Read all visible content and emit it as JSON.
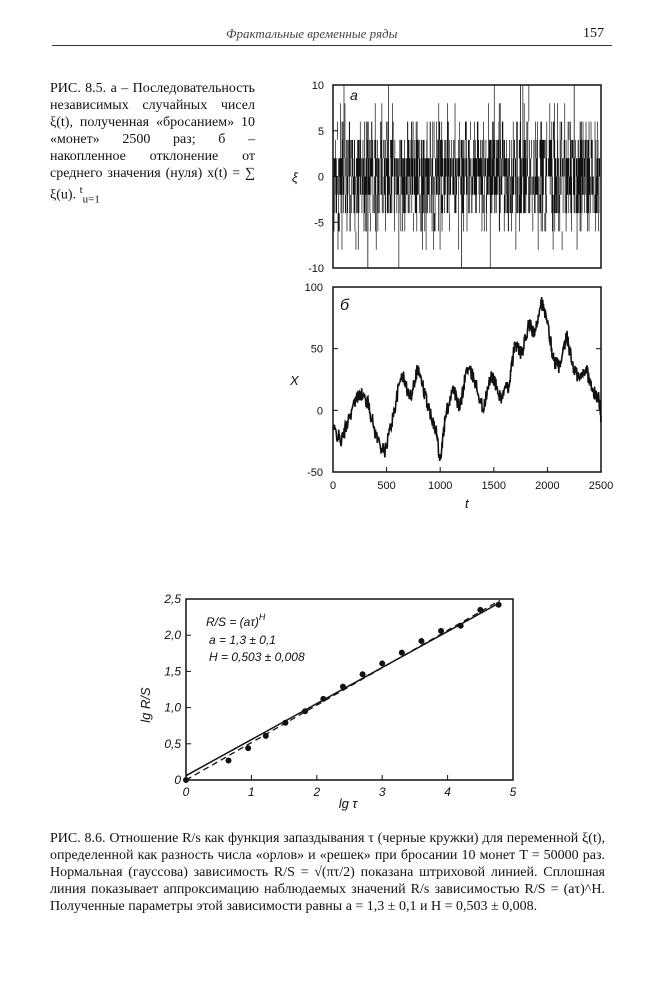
{
  "header": {
    "title": "Фрактальные временные ряды",
    "page_number": "157"
  },
  "figure_85": {
    "caption": {
      "label": "РИС. 8.5.",
      "text_a": "а – Последовательность независимых случайных чисел ξ(t), полученная «бросанием» 10 «монет» 2500 раз;",
      "text_b": "б – накопленное отклонение от среднего значения (нуля) x(t) = ∑ ξ(u).",
      "sum_sup": "t",
      "sum_sub": "u=1"
    },
    "panel_a": {
      "letter": "a",
      "ylabel": "ξ",
      "yticks": [
        "10",
        "5",
        "0",
        "-5",
        "-10"
      ]
    },
    "panel_b": {
      "letter": "б",
      "ylabel": "X",
      "yticks": [
        "100",
        "50",
        "0",
        "-50"
      ],
      "xticks": [
        "0",
        "500",
        "1000",
        "1500",
        "2000",
        "2500"
      ],
      "xlabel": "t"
    }
  },
  "figure_86": {
    "formula": "R/S = (aτ)",
    "formula_sup": "H",
    "param_a": "a = 1,3 ± 0,1",
    "param_h": "H = 0,503 ± 0,008",
    "ylabel": "lg R/S",
    "xlabel": "lg τ",
    "caption": "РИС. 8.6. Отношение R/s как функция запаздывания τ (черные кружки) для переменной ξ(t), определенной как разность числа «орлов» и «решек» при бросании 10 монет T = 50000 раз. Нормальная (гауссова) зависимость R/S = √(πτ/2) показана штриховой линией. Сплошная линия показывает аппроксимацию наблюдаемых значений R/s зависимостью R/S = (aτ)^H. Полученные параметры этой зависимости равны a = 1,3 ± 0,1 и H = 0,503 ± 0,008."
  },
  "chart_data": [
    {
      "type": "line",
      "panel": "a",
      "xlim": [
        0,
        2500
      ],
      "ylim": [
        -10,
        10
      ],
      "ylabel": "ξ",
      "yticks": [
        10,
        5,
        0,
        -5,
        -10
      ],
      "n": 2500,
      "values_distribution": "binomial sum of 10 coins, ±2k",
      "note_values": [
        -10,
        10
      ]
    },
    {
      "type": "line",
      "panel": "б",
      "xlim": [
        0,
        2500
      ],
      "ylim": [
        -50,
        100
      ],
      "xlabel": "t",
      "ylabel": "X",
      "xticks": [
        0,
        500,
        1000,
        1500,
        2000,
        2500
      ],
      "yticks": [
        -50,
        0,
        50,
        100
      ],
      "x": [
        0,
        80,
        150,
        250,
        330,
        400,
        480,
        560,
        640,
        720,
        790,
        850,
        900,
        960,
        1000,
        1050,
        1120,
        1180,
        1250,
        1320,
        1400,
        1480,
        1560,
        1640,
        1700,
        1760,
        1830,
        1880,
        1940,
        2000,
        2060,
        2120,
        2180,
        2240,
        2300,
        2360,
        2420,
        2480,
        2500
      ],
      "y": [
        -15,
        -25,
        -5,
        15,
        5,
        -20,
        -35,
        -5,
        30,
        10,
        35,
        15,
        0,
        -15,
        -40,
        -5,
        20,
        0,
        35,
        25,
        0,
        30,
        10,
        20,
        55,
        45,
        70,
        60,
        90,
        70,
        40,
        35,
        60,
        35,
        25,
        35,
        15,
        10,
        -5
      ]
    },
    {
      "type": "scatter",
      "xlabel": "lg τ",
      "ylabel": "lg R/S",
      "xlim": [
        0,
        5
      ],
      "ylim": [
        0,
        2.5
      ],
      "xticks": [
        "0",
        "1",
        "2",
        "3",
        "4",
        "5"
      ],
      "yticks": [
        "0",
        "0,5",
        "1,0",
        "1,5",
        "2,0",
        "2,5"
      ],
      "series": [
        {
          "x": [
            0.65,
            0.95,
            1.22,
            1.52,
            1.82,
            2.1,
            2.4,
            2.7,
            3.0,
            3.3,
            3.6,
            3.9,
            4.2,
            4.5,
            4.78
          ],
          "y": [
            0.27,
            0.44,
            0.61,
            0.79,
            0.95,
            1.12,
            1.29,
            1.46,
            1.61,
            1.76,
            1.92,
            2.06,
            2.13,
            2.35,
            2.42
          ]
        }
      ],
      "lines": [
        {
          "style": "dashed",
          "x": [
            0,
            4.8
          ],
          "y": [
            0,
            2.48
          ]
        },
        {
          "style": "solid",
          "x": [
            0,
            4.8
          ],
          "y": [
            0.06,
            2.45
          ]
        }
      ]
    }
  ]
}
